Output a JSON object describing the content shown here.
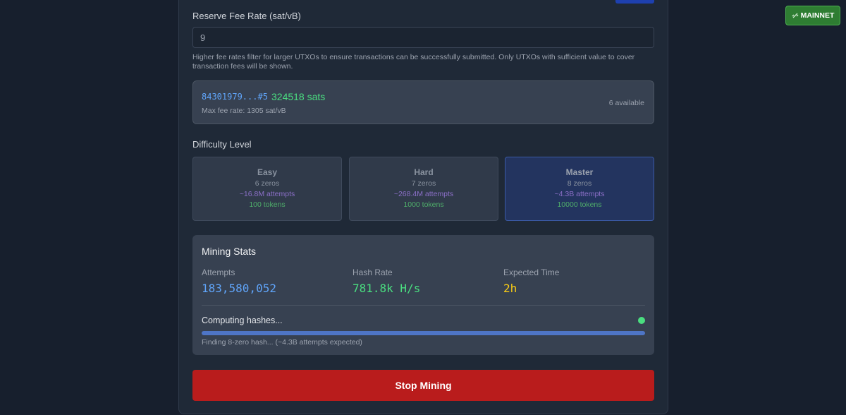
{
  "network_badge": {
    "label": "MAINNET"
  },
  "fee_rate": {
    "label": "Reserve Fee Rate (sat/vB)",
    "value": "9",
    "help": "Higher fee rates filter for larger UTXOs to ensure transactions can be successfully submitted. Only UTXOs with sufficient value to cover transaction fees will be shown."
  },
  "utxo": {
    "id": "84301979...#5",
    "amount": "324518 sats",
    "max_fee": "Max fee rate: 1305 sat/vB",
    "available": "6 available"
  },
  "difficulty": {
    "label": "Difficulty Level",
    "levels": [
      {
        "name": "Easy",
        "zeros": "6 zeros",
        "attempts": "~16.8M attempts",
        "reward": "100 tokens"
      },
      {
        "name": "Hard",
        "zeros": "7 zeros",
        "attempts": "~268.4M attempts",
        "reward": "1000 tokens"
      },
      {
        "name": "Master",
        "zeros": "8 zeros",
        "attempts": "~4.3B attempts",
        "reward": "10000 tokens"
      }
    ]
  },
  "mining_stats": {
    "title": "Mining Stats",
    "stats": [
      {
        "label": "Attempts",
        "value": "183,580,052"
      },
      {
        "label": "Hash Rate",
        "value": "781.8k H/s"
      },
      {
        "label": "Expected Time",
        "value": "2h"
      }
    ],
    "status": "Computing hashes...",
    "detail": "Finding 8-zero hash... (~4.3B attempts expected)"
  },
  "stop_button": {
    "label": "Stop Mining"
  }
}
